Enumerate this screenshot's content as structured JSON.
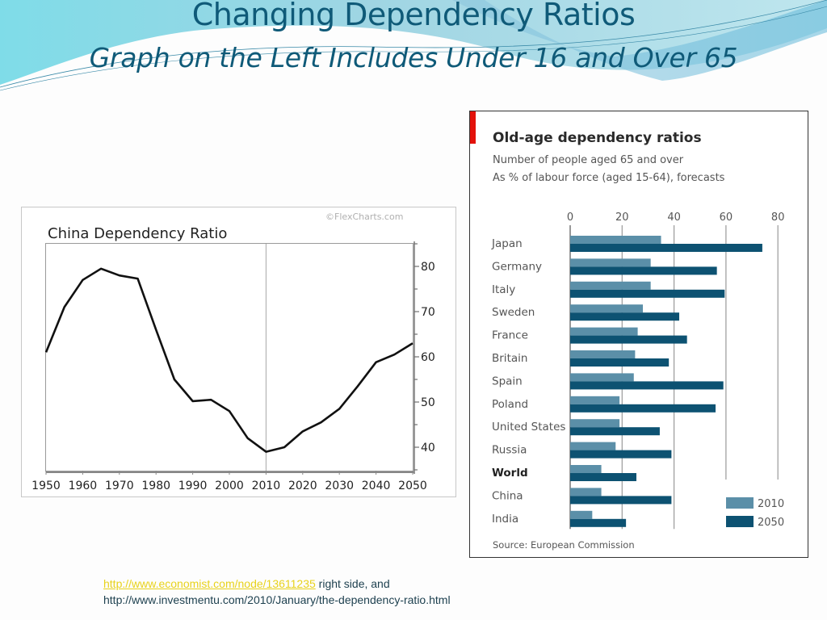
{
  "slide": {
    "title": "Changing Dependency Ratios",
    "subtitle": "Graph on the Left Includes Under 16 and Over 65"
  },
  "colors": {
    "title": "#0f5a78",
    "series_2010": "#5b8fa8",
    "series_2050": "#0d5272",
    "accent_red": "#e3120b",
    "link": "#e8d21a",
    "line": "#111111"
  },
  "footer": {
    "link_text": "http://www.economist.com/node/13611235",
    "link_suffix": " right side, and",
    "line2": "http://www.investmentu.com/2010/January/the-dependency-ratio.html"
  },
  "chart_data": [
    {
      "type": "line",
      "title": "China Dependency Ratio",
      "credit": "©FlexCharts.com",
      "xlabel": "",
      "ylabel": "",
      "x": [
        1950,
        1955,
        1960,
        1965,
        1970,
        1975,
        1980,
        1985,
        1990,
        1995,
        2000,
        2005,
        2010,
        2015,
        2020,
        2025,
        2030,
        2035,
        2040,
        2045,
        2050
      ],
      "series": [
        {
          "name": "China Dependency Ratio",
          "values": [
            61,
            71,
            77,
            79.5,
            78,
            77.3,
            66,
            55,
            50.2,
            50.5,
            48,
            42,
            39,
            40,
            43.5,
            45.5,
            48.5,
            53.5,
            58.8,
            60.5,
            63
          ]
        }
      ],
      "xticks": [
        "1950",
        "1960",
        "1970",
        "1980",
        "1990",
        "2000",
        "2010",
        "2020",
        "2030",
        "2040",
        "2050"
      ],
      "yticks": [
        "40",
        "50",
        "60",
        "70",
        "80"
      ],
      "xlim": [
        1950,
        2050
      ],
      "ylim": [
        35,
        85
      ],
      "y_axis_side": "right",
      "vertical_marker_x": 2010,
      "grid": false
    },
    {
      "type": "bar",
      "orientation": "horizontal",
      "title": "Old-age dependency ratios",
      "subtitle_lines": [
        "Number of people aged 65 and over",
        "As % of labour force (aged 15-64), forecasts"
      ],
      "source": "Source: European Commission",
      "categories": [
        "Japan",
        "Germany",
        "Italy",
        "Sweden",
        "France",
        "Britain",
        "Spain",
        "Poland",
        "United States",
        "Russia",
        "World",
        "China",
        "India"
      ],
      "bold_categories": [
        "World"
      ],
      "series": [
        {
          "name": "2010",
          "values": [
            35,
            31,
            31,
            28,
            26,
            25,
            24.5,
            19,
            19,
            17.5,
            12,
            12,
            8.5
          ]
        },
        {
          "name": "2050",
          "values": [
            74,
            56.5,
            59.5,
            42,
            45,
            38,
            59,
            56,
            34.5,
            39,
            25.5,
            39,
            21.5
          ]
        }
      ],
      "xticks": [
        "0",
        "20",
        "40",
        "60",
        "80"
      ],
      "xlim": [
        0,
        80
      ],
      "grid": true,
      "legend": [
        "2010",
        "2050"
      ],
      "legend_position": "bottom-right"
    }
  ]
}
